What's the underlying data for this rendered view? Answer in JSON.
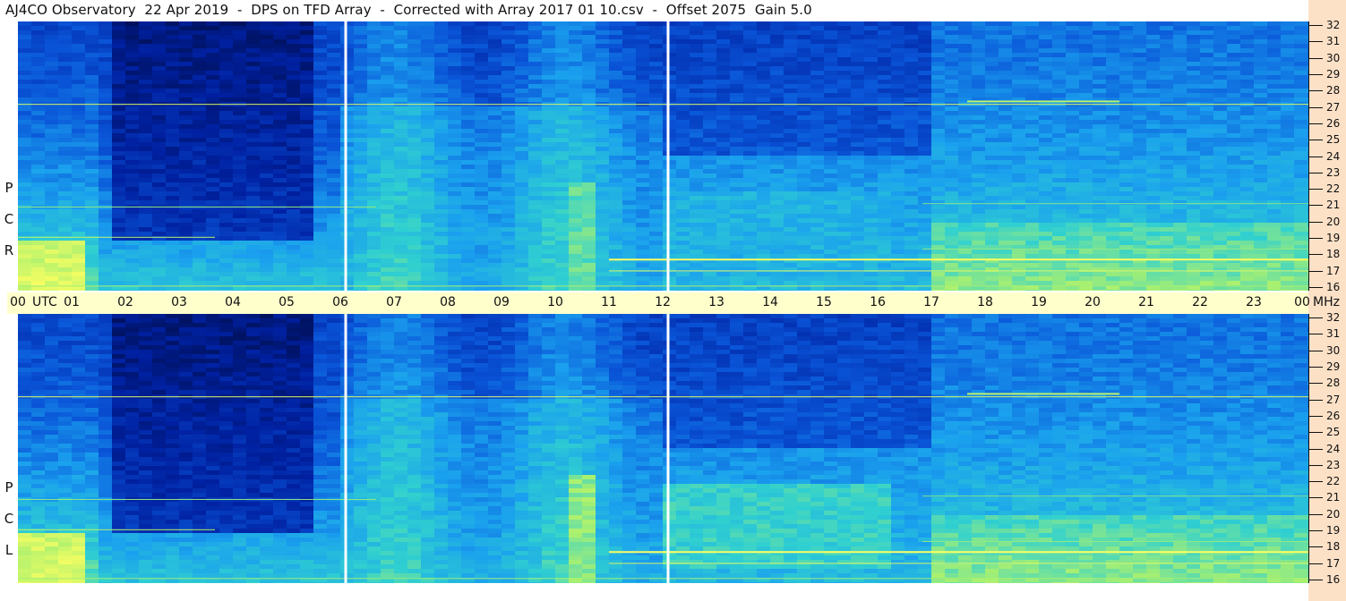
{
  "title": "AJ4CO Observatory  22 Apr 2019  -  DPS on TFD Array  -  Corrected with Array 2017 01 10.csv  -  Offset 2075  Gain 5.0",
  "top_panel": {
    "polarization_letters": [
      "R",
      "C",
      "P"
    ]
  },
  "bottom_panel": {
    "polarization_letters": [
      "L",
      "C",
      "P"
    ]
  },
  "time_axis": {
    "utc_label": "UTC",
    "mhz_label": "MHz",
    "hours": [
      "00",
      "01",
      "02",
      "03",
      "04",
      "05",
      "06",
      "07",
      "08",
      "09",
      "10",
      "11",
      "12",
      "13",
      "14",
      "15",
      "16",
      "17",
      "18",
      "19",
      "20",
      "21",
      "22",
      "23",
      "00"
    ]
  },
  "colors": {
    "background_panel": "#ffcc99",
    "utc_bar": "#ffffcc",
    "colormap": [
      "#000a3c",
      "#0020a0",
      "#0a55d8",
      "#1aa0ee",
      "#30d0d0",
      "#a8f070",
      "#ffff60",
      "#ff6060",
      "#ffffff"
    ]
  },
  "chart_data": {
    "type": "heatmap",
    "title": "AJ4CO Observatory  22 Apr 2019  -  DPS on TFD Array  -  Corrected with Array 2017 01 10.csv  -  Offset 2075  Gain 5.0",
    "xlabel": "UTC",
    "ylabel": "MHz",
    "x_ticks": [
      "00",
      "01",
      "02",
      "03",
      "04",
      "05",
      "06",
      "07",
      "08",
      "09",
      "10",
      "11",
      "12",
      "13",
      "14",
      "15",
      "16",
      "17",
      "18",
      "19",
      "20",
      "21",
      "22",
      "23",
      "00"
    ],
    "y_ticks": [
      16,
      17,
      18,
      19,
      20,
      21,
      22,
      23,
      24,
      25,
      26,
      27,
      28,
      29,
      30,
      31,
      32
    ],
    "ylim": [
      16,
      32
    ],
    "panels": [
      "RCP",
      "LCP"
    ],
    "data_gaps_utc": [
      6.1,
      12.1
    ]
  }
}
